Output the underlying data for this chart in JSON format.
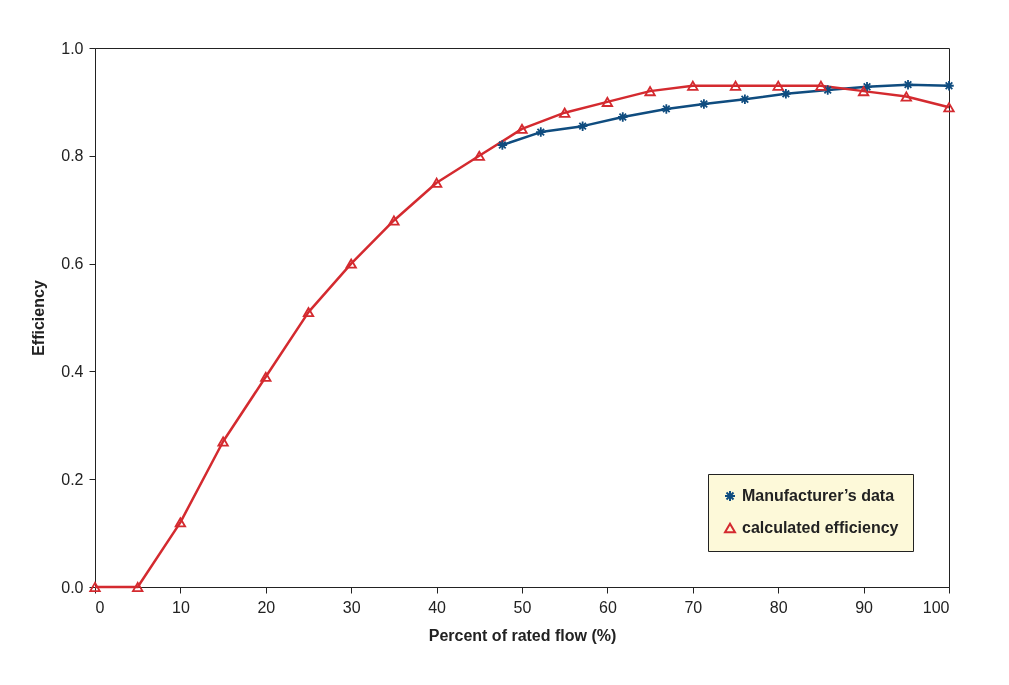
{
  "chart_data": {
    "type": "line",
    "xlabel": "Percent of rated flow (%)",
    "ylabel": "Efficiency",
    "xlim": [
      0,
      100
    ],
    "xticks": [
      0,
      10,
      20,
      30,
      40,
      50,
      60,
      70,
      80,
      90,
      100
    ],
    "ylim": [
      0,
      1
    ],
    "yticks": [
      {
        "value": 0,
        "label": "0.0"
      },
      {
        "value": 0.2,
        "label": "0.2"
      },
      {
        "value": 0.4,
        "label": "0.4"
      },
      {
        "value": 0.6,
        "label": "0.6"
      },
      {
        "value": 0.8,
        "label": "0.8"
      },
      {
        "value": 1,
        "label": "1.0"
      }
    ],
    "grid": false,
    "legend": "bottom right",
    "line_style": "solid",
    "series": [
      {
        "name": "Manufacturer’s data",
        "color": "#0f4c7f",
        "marker": "cross",
        "x": [
          47.7,
          52.2,
          57.1,
          61.8,
          66.9,
          71.3,
          76.1,
          80.9,
          85.8,
          90.4,
          95.2,
          100
        ],
        "values": [
          0.82,
          0.844,
          0.855,
          0.872,
          0.887,
          0.896,
          0.905,
          0.915,
          0.922,
          0.928,
          0.932,
          0.93
        ]
      },
      {
        "name": "calculated efficiency",
        "color": "#d42a2f",
        "marker": "triangle",
        "x": [
          0,
          5,
          10,
          15,
          20,
          25,
          30,
          35,
          40,
          45,
          50,
          55,
          60,
          65,
          70,
          75,
          80,
          85,
          90,
          95,
          100
        ],
        "values": [
          0,
          0,
          0.12,
          0.27,
          0.39,
          0.51,
          0.6,
          0.68,
          0.75,
          0.8,
          0.85,
          0.88,
          0.9,
          0.92,
          0.93,
          0.93,
          0.93,
          0.93,
          0.92,
          0.91,
          0.89
        ]
      }
    ]
  }
}
